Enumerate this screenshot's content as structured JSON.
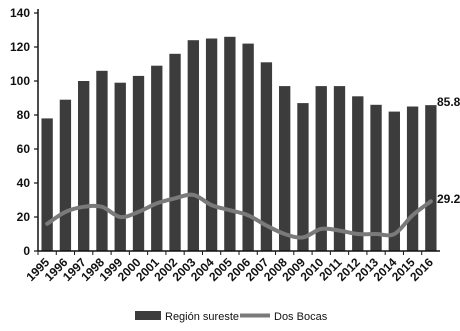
{
  "chart_data": {
    "type": "bar",
    "categories": [
      "1995",
      "1996",
      "1997",
      "1998",
      "1999",
      "2000",
      "2001",
      "2002",
      "2003",
      "2004",
      "2005",
      "2006",
      "2007",
      "2008",
      "2009",
      "2010",
      "2011",
      "2012",
      "2013",
      "2014",
      "2015",
      "2016"
    ],
    "series": [
      {
        "name": "Región sureste",
        "kind": "bar",
        "color": "#3c3c3c",
        "values": [
          78,
          89,
          100,
          106,
          99,
          103,
          109,
          116,
          124,
          125,
          126,
          122,
          111,
          97,
          87,
          97,
          97,
          91,
          86,
          82,
          85,
          85.8
        ]
      },
      {
        "name": "Dos Bocas",
        "kind": "line",
        "color": "#7a7a7a",
        "values": [
          16,
          23,
          26,
          26,
          20,
          23,
          28,
          31,
          33,
          27,
          24,
          21,
          15,
          10,
          8,
          13,
          12,
          10,
          10,
          10,
          21,
          29.2
        ]
      }
    ],
    "end_labels": {
      "bar": "85.8",
      "line": "29.2"
    },
    "y_ticks": [
      "0",
      "20",
      "40",
      "60",
      "80",
      "100",
      "120",
      "140"
    ],
    "ylim": [
      0,
      140
    ],
    "title": "",
    "xlabel": "",
    "ylabel": "",
    "grid": false,
    "legend_position": "bottom"
  }
}
